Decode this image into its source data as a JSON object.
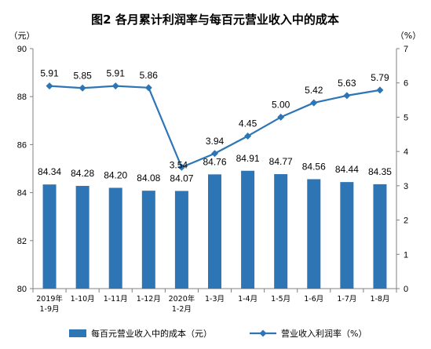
{
  "chart_data": {
    "type": "bar+line",
    "title": "图2  各月累计利润率与每百元营业收入中的成本",
    "left_axis": {
      "unit": "（元）",
      "ylim": [
        80,
        90
      ],
      "ticks": [
        80,
        82,
        84,
        86,
        88,
        90
      ]
    },
    "right_axis": {
      "unit": "（%）",
      "ylim": [
        0,
        7
      ],
      "ticks": [
        0,
        1,
        2,
        3,
        4,
        5,
        6,
        7
      ]
    },
    "categories": [
      [
        "2019年",
        "1-9月"
      ],
      [
        "1-10月"
      ],
      [
        "1-11月"
      ],
      [
        "1-12月"
      ],
      [
        "2020年",
        "1-2月"
      ],
      [
        "1-3月"
      ],
      [
        "1-4月"
      ],
      [
        "1-5月"
      ],
      [
        "1-6月"
      ],
      [
        "1-7月"
      ],
      [
        "1-8月"
      ]
    ],
    "series": [
      {
        "name": "每百元营业收入中的成本（元）",
        "type": "bar",
        "axis": "left",
        "color": "#2E75B6",
        "values": [
          84.34,
          84.28,
          84.2,
          84.08,
          84.07,
          84.76,
          84.91,
          84.77,
          84.56,
          84.44,
          84.35
        ],
        "labels": [
          "84.34",
          "84.28",
          "84.20",
          "84.08",
          "84.07",
          "84.76",
          "84.91",
          "84.77",
          "84.56",
          "84.44",
          "84.35"
        ]
      },
      {
        "name": "营业收入利润率（%）",
        "type": "line",
        "axis": "right",
        "color": "#2E75B6",
        "marker": "diamond",
        "values": [
          5.91,
          5.85,
          5.91,
          5.86,
          3.54,
          3.94,
          4.45,
          5.0,
          5.42,
          5.63,
          5.79
        ],
        "labels": [
          "5.91",
          "5.85",
          "5.91",
          "5.86",
          "3.54",
          "3.94",
          "4.45",
          "5.00",
          "5.42",
          "5.63",
          "5.79"
        ]
      }
    ],
    "legend": {
      "position": "bottom"
    },
    "grid": false
  }
}
